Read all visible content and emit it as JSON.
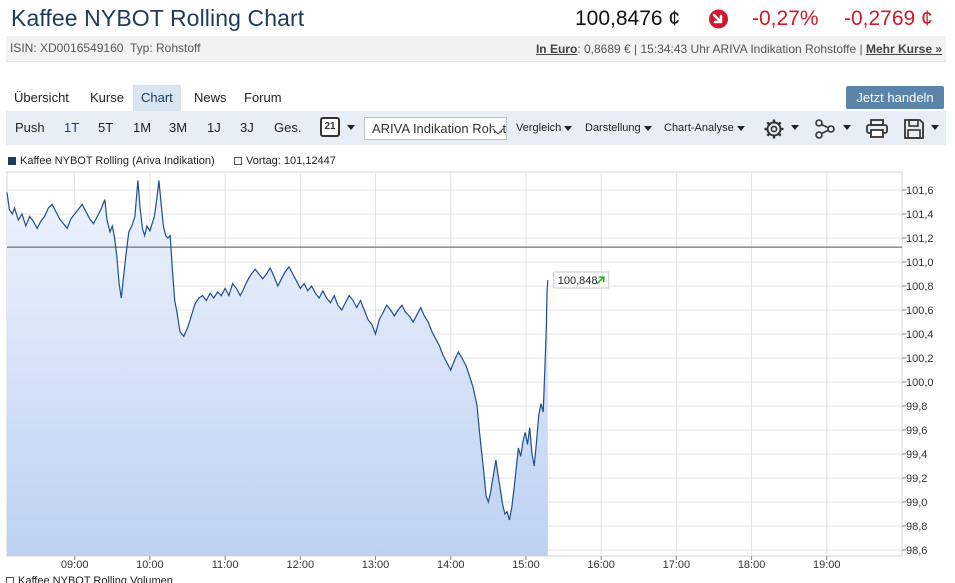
{
  "header": {
    "title": "Kaffee NYBOT Rolling Chart",
    "price": "100,8476 ¢",
    "change_pct": "-0,27%",
    "change_abs": "-0,2769 ¢",
    "down_color": "#d3172d"
  },
  "subbar": {
    "isin": "ISIN: XD0016549160",
    "typ": "Typ: Rohstoff",
    "in_euro_label": "In Euro",
    "euro_text": ": 0,8689 € | 15:34:43 Uhr ARIVA Indikation Rohstoffe |",
    "more_label": "Mehr Kurse »"
  },
  "tabs": [
    {
      "label": "Übersicht",
      "active": false
    },
    {
      "label": "Kurse",
      "active": false
    },
    {
      "label": "Chart",
      "active": true
    },
    {
      "label": "News",
      "active": false
    },
    {
      "label": "Forum",
      "active": false
    }
  ],
  "trade_button": "Jetzt handeln",
  "toolbar": {
    "ranges": [
      "Push",
      "1T",
      "5T",
      "1M",
      "3M",
      "1J",
      "3J",
      "Ges."
    ],
    "selected_range": "1T",
    "calendar_day": "21",
    "source_select": "ARIVA Indikation Rohstoffe",
    "menus": [
      "Vergleich",
      "Darstellung",
      "Chart-Analyse"
    ],
    "icons": [
      "gear-icon",
      "network-icon",
      "printer-icon",
      "save-icon"
    ]
  },
  "legend": {
    "series": "Kaffee NYBOT Rolling (Ariva Indikation)",
    "vortag": "Vortag: 101,12447",
    "volume": "Kaffee NYBOT Rolling Volumen"
  },
  "chart_data": {
    "type": "area",
    "series_name": "Kaffee NYBOT Rolling (Ariva Indikation)",
    "x_axis": {
      "min": 8.1,
      "max": 20.0,
      "ticks": [
        "09:00",
        "10:00",
        "11:00",
        "12:00",
        "13:00",
        "14:00",
        "15:00",
        "16:00",
        "17:00",
        "18:00",
        "19:00"
      ],
      "tick_values": [
        9,
        10,
        11,
        12,
        13,
        14,
        15,
        16,
        17,
        18,
        19
      ]
    },
    "y_axis": {
      "min": 98.55,
      "max": 101.75,
      "ticks": [
        "101,6",
        "101,4",
        "101,2",
        "101,0",
        "100,8",
        "100,6",
        "100,4",
        "100,2",
        "100,0",
        "99,8",
        "99,6",
        "99,4",
        "99,2",
        "99,0",
        "98,8",
        "98,6"
      ],
      "tick_values": [
        101.6,
        101.4,
        101.2,
        101.0,
        100.8,
        100.6,
        100.4,
        100.2,
        100.0,
        99.8,
        99.6,
        99.4,
        99.2,
        99.0,
        98.8,
        98.6
      ],
      "position": "right"
    },
    "reference_line": {
      "label": "Vortag",
      "value": 101.12447
    },
    "last_value_label": "100,848",
    "grid": true,
    "line_color": "#1f4e8c",
    "fill_top": "#eef3fc",
    "fill_bottom": "#bcd1f2",
    "points": [
      [
        8.1,
        101.58
      ],
      [
        8.13,
        101.44
      ],
      [
        8.17,
        101.4
      ],
      [
        8.2,
        101.45
      ],
      [
        8.25,
        101.35
      ],
      [
        8.3,
        101.4
      ],
      [
        8.35,
        101.3
      ],
      [
        8.4,
        101.38
      ],
      [
        8.45,
        101.34
      ],
      [
        8.5,
        101.28
      ],
      [
        8.55,
        101.34
      ],
      [
        8.6,
        101.38
      ],
      [
        8.65,
        101.45
      ],
      [
        8.7,
        101.48
      ],
      [
        8.75,
        101.42
      ],
      [
        8.8,
        101.36
      ],
      [
        8.85,
        101.32
      ],
      [
        8.9,
        101.28
      ],
      [
        8.95,
        101.36
      ],
      [
        9.0,
        101.4
      ],
      [
        9.05,
        101.44
      ],
      [
        9.1,
        101.48
      ],
      [
        9.15,
        101.42
      ],
      [
        9.2,
        101.36
      ],
      [
        9.25,
        101.32
      ],
      [
        9.3,
        101.38
      ],
      [
        9.35,
        101.44
      ],
      [
        9.4,
        101.52
      ],
      [
        9.43,
        101.35
      ],
      [
        9.47,
        101.25
      ],
      [
        9.5,
        101.3
      ],
      [
        9.53,
        101.2
      ],
      [
        9.56,
        101.05
      ],
      [
        9.59,
        100.82
      ],
      [
        9.62,
        100.7
      ],
      [
        9.65,
        100.88
      ],
      [
        9.68,
        101.05
      ],
      [
        9.72,
        101.25
      ],
      [
        9.76,
        101.3
      ],
      [
        9.8,
        101.38
      ],
      [
        9.84,
        101.68
      ],
      [
        9.87,
        101.45
      ],
      [
        9.9,
        101.28
      ],
      [
        9.93,
        101.22
      ],
      [
        9.96,
        101.3
      ],
      [
        10.0,
        101.26
      ],
      [
        10.03,
        101.32
      ],
      [
        10.06,
        101.38
      ],
      [
        10.09,
        101.52
      ],
      [
        10.12,
        101.68
      ],
      [
        10.15,
        101.48
      ],
      [
        10.18,
        101.3
      ],
      [
        10.21,
        101.22
      ],
      [
        10.24,
        101.2
      ],
      [
        10.27,
        101.22
      ],
      [
        10.3,
        100.92
      ],
      [
        10.33,
        100.68
      ],
      [
        10.36,
        100.58
      ],
      [
        10.4,
        100.42
      ],
      [
        10.45,
        100.38
      ],
      [
        10.5,
        100.45
      ],
      [
        10.55,
        100.55
      ],
      [
        10.6,
        100.65
      ],
      [
        10.65,
        100.7
      ],
      [
        10.7,
        100.72
      ],
      [
        10.75,
        100.68
      ],
      [
        10.8,
        100.74
      ],
      [
        10.85,
        100.7
      ],
      [
        10.9,
        100.75
      ],
      [
        10.95,
        100.72
      ],
      [
        11.0,
        100.78
      ],
      [
        11.05,
        100.72
      ],
      [
        11.1,
        100.82
      ],
      [
        11.15,
        100.78
      ],
      [
        11.2,
        100.72
      ],
      [
        11.25,
        100.78
      ],
      [
        11.3,
        100.85
      ],
      [
        11.35,
        100.9
      ],
      [
        11.4,
        100.94
      ],
      [
        11.45,
        100.9
      ],
      [
        11.5,
        100.86
      ],
      [
        11.55,
        100.9
      ],
      [
        11.6,
        100.95
      ],
      [
        11.65,
        100.88
      ],
      [
        11.7,
        100.8
      ],
      [
        11.75,
        100.86
      ],
      [
        11.8,
        100.92
      ],
      [
        11.85,
        100.96
      ],
      [
        11.9,
        100.9
      ],
      [
        11.95,
        100.84
      ],
      [
        12.0,
        100.78
      ],
      [
        12.05,
        100.82
      ],
      [
        12.1,
        100.76
      ],
      [
        12.15,
        100.8
      ],
      [
        12.2,
        100.74
      ],
      [
        12.25,
        100.7
      ],
      [
        12.3,
        100.76
      ],
      [
        12.35,
        100.7
      ],
      [
        12.4,
        100.66
      ],
      [
        12.45,
        100.72
      ],
      [
        12.5,
        100.64
      ],
      [
        12.55,
        100.6
      ],
      [
        12.6,
        100.66
      ],
      [
        12.65,
        100.72
      ],
      [
        12.7,
        100.68
      ],
      [
        12.75,
        100.62
      ],
      [
        12.8,
        100.68
      ],
      [
        12.85,
        100.6
      ],
      [
        12.9,
        100.52
      ],
      [
        12.95,
        100.48
      ],
      [
        13.0,
        100.4
      ],
      [
        13.05,
        100.52
      ],
      [
        13.1,
        100.58
      ],
      [
        13.15,
        100.64
      ],
      [
        13.2,
        100.6
      ],
      [
        13.25,
        100.55
      ],
      [
        13.3,
        100.6
      ],
      [
        13.35,
        100.64
      ],
      [
        13.4,
        100.58
      ],
      [
        13.45,
        100.55
      ],
      [
        13.5,
        100.5
      ],
      [
        13.55,
        100.56
      ],
      [
        13.6,
        100.62
      ],
      [
        13.65,
        100.55
      ],
      [
        13.7,
        100.5
      ],
      [
        13.75,
        100.42
      ],
      [
        13.8,
        100.36
      ],
      [
        13.85,
        100.3
      ],
      [
        13.9,
        100.22
      ],
      [
        13.95,
        100.16
      ],
      [
        14.0,
        100.1
      ],
      [
        14.05,
        100.18
      ],
      [
        14.1,
        100.25
      ],
      [
        14.15,
        100.2
      ],
      [
        14.2,
        100.14
      ],
      [
        14.25,
        100.05
      ],
      [
        14.3,
        99.95
      ],
      [
        14.35,
        99.8
      ],
      [
        14.38,
        99.6
      ],
      [
        14.41,
        99.42
      ],
      [
        14.44,
        99.25
      ],
      [
        14.47,
        99.05
      ],
      [
        14.5,
        99.0
      ],
      [
        14.53,
        99.08
      ],
      [
        14.56,
        99.2
      ],
      [
        14.6,
        99.35
      ],
      [
        14.63,
        99.22
      ],
      [
        14.66,
        99.1
      ],
      [
        14.69,
        98.98
      ],
      [
        14.72,
        98.9
      ],
      [
        14.75,
        98.92
      ],
      [
        14.78,
        98.85
      ],
      [
        14.81,
        98.95
      ],
      [
        14.84,
        99.1
      ],
      [
        14.87,
        99.28
      ],
      [
        14.9,
        99.45
      ],
      [
        14.93,
        99.38
      ],
      [
        14.96,
        99.5
      ],
      [
        14.99,
        99.58
      ],
      [
        15.02,
        99.48
      ],
      [
        15.05,
        99.62
      ],
      [
        15.08,
        99.4
      ],
      [
        15.11,
        99.3
      ],
      [
        15.14,
        99.5
      ],
      [
        15.17,
        99.72
      ],
      [
        15.2,
        99.82
      ],
      [
        15.23,
        99.75
      ],
      [
        15.25,
        100.1
      ],
      [
        15.27,
        100.45
      ],
      [
        15.28,
        100.75
      ],
      [
        15.29,
        100.85
      ]
    ]
  }
}
